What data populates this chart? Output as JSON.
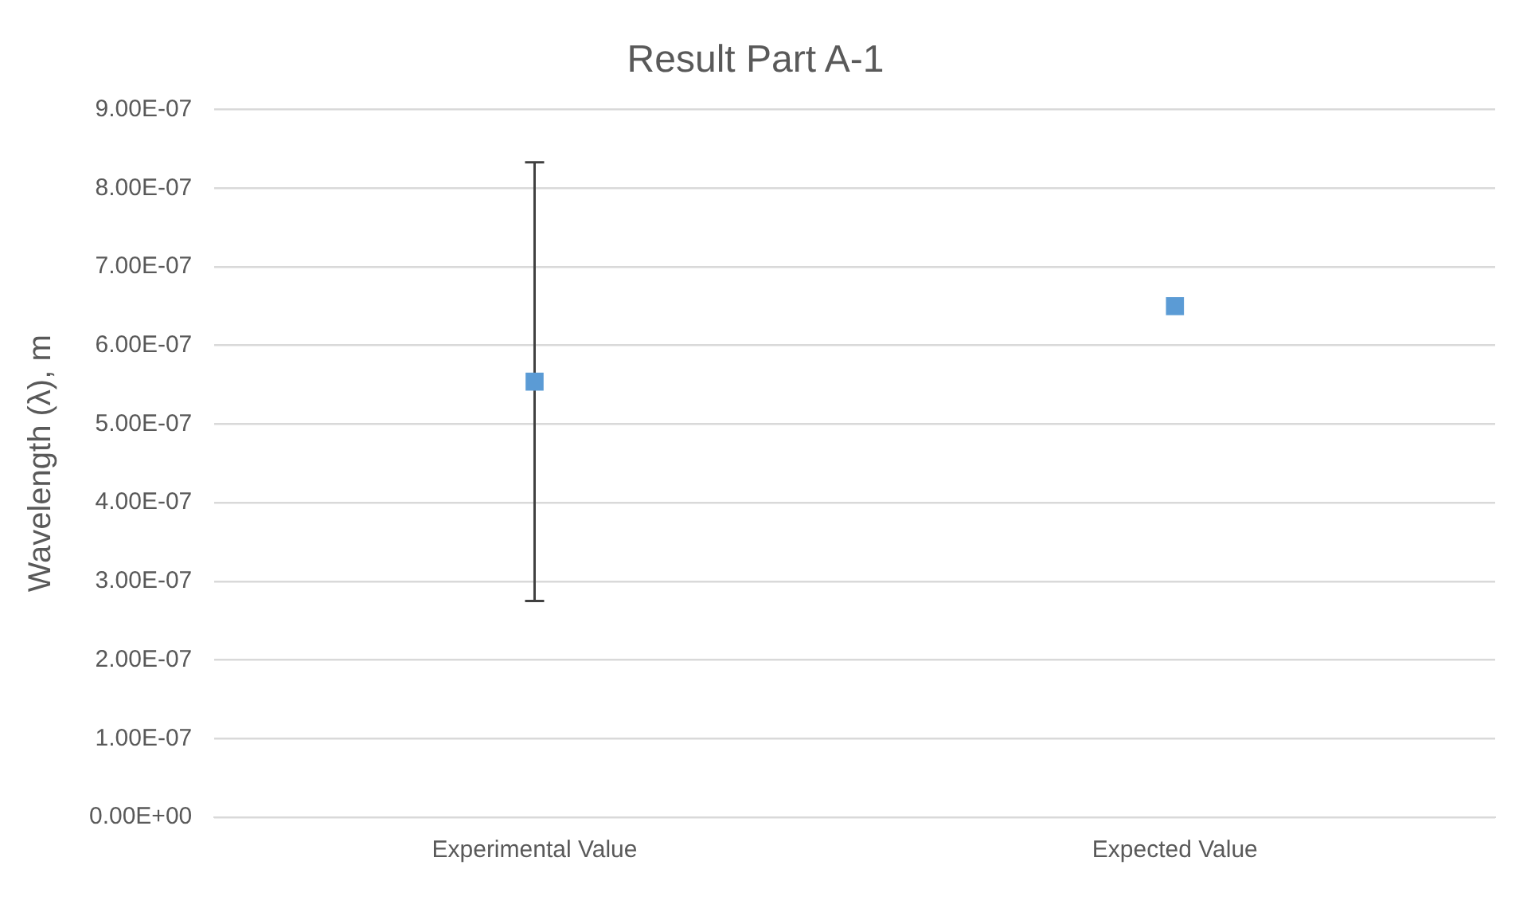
{
  "chart_data": {
    "type": "scatter",
    "title": "Result Part A-1",
    "ylabel": "Wavelength (λ), m",
    "categories": [
      "Experimental Value",
      "Expected Value"
    ],
    "series": [
      {
        "color": "#5b9bd5",
        "values": [
          5.54e-07,
          6.5e-07
        ],
        "errors": [
          2.79e-07,
          null
        ]
      }
    ],
    "ylim": [
      0,
      9e-07
    ],
    "yticks": [
      {
        "value": 0,
        "label": "0.00E+00"
      },
      {
        "value": 1e-07,
        "label": "1.00E-07"
      },
      {
        "value": 2e-07,
        "label": "2.00E-07"
      },
      {
        "value": 3e-07,
        "label": "3.00E-07"
      },
      {
        "value": 4e-07,
        "label": "4.00E-07"
      },
      {
        "value": 5e-07,
        "label": "5.00E-07"
      },
      {
        "value": 6e-07,
        "label": "6.00E-07"
      },
      {
        "value": 7e-07,
        "label": "7.00E-07"
      },
      {
        "value": 8e-07,
        "label": "8.00E-07"
      },
      {
        "value": 9e-07,
        "label": "9.00E-07"
      }
    ],
    "grid": "y",
    "marker": "square",
    "legend": false
  }
}
